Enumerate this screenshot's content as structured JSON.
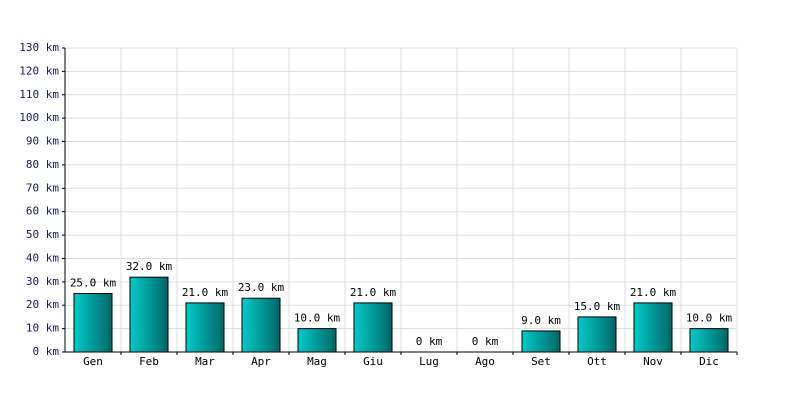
{
  "chart_data": {
    "type": "bar",
    "categories": [
      "Gen",
      "Feb",
      "Mar",
      "Apr",
      "Mag",
      "Giu",
      "Lug",
      "Ago",
      "Set",
      "Ott",
      "Nov",
      "Dic"
    ],
    "values": [
      25,
      32,
      21,
      23,
      10,
      21,
      0,
      0,
      9,
      15,
      21,
      10
    ],
    "value_labels": [
      "25.0 km",
      "32.0 km",
      "21.0 km",
      "23.0 km",
      "10.0 km",
      "21.0 km",
      "0 km",
      "0 km",
      "9.0 km",
      "15.0 km",
      "21.0 km",
      "10.0 km"
    ],
    "color": "#00cccc",
    "ylim": [
      0,
      130
    ],
    "yticks": [
      {
        "value": 0,
        "label": "0 km"
      },
      {
        "value": 10,
        "label": "10 km"
      },
      {
        "value": 20,
        "label": "20 km"
      },
      {
        "value": 30,
        "label": "30 km"
      },
      {
        "value": 40,
        "label": "40 km"
      },
      {
        "value": 50,
        "label": "50 km"
      },
      {
        "value": 60,
        "label": "60 km"
      },
      {
        "value": 70,
        "label": "70 km"
      },
      {
        "value": 80,
        "label": "80 km"
      },
      {
        "value": 90,
        "label": "90 km"
      },
      {
        "value": 100,
        "label": "100 km"
      },
      {
        "value": 110,
        "label": "110 km"
      },
      {
        "value": 120,
        "label": "120 km"
      },
      {
        "value": 130,
        "label": "130 km"
      }
    ],
    "grid": true
  }
}
